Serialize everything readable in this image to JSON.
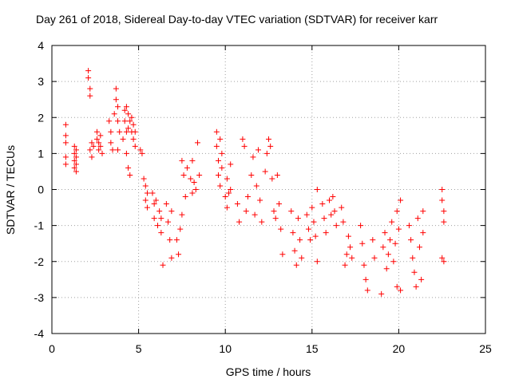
{
  "chart_data": {
    "type": "scatter",
    "title": "Day 261 of 2018, Sidereal Day-to-day VTEC variation (SDTVAR) for receiver karr",
    "xlabel": "GPS time / hours",
    "ylabel": "SDTVAR / TECUs",
    "xlim": [
      0,
      25
    ],
    "ylim": [
      -4,
      4
    ],
    "xticks": [
      0,
      5,
      10,
      15,
      20,
      25
    ],
    "yticks": [
      -4,
      -3,
      -2,
      -1,
      0,
      1,
      2,
      3,
      4
    ],
    "grid": true,
    "marker": "plus",
    "color": "#ff0000",
    "series": [
      {
        "name": "SDTVAR",
        "points": [
          [
            0.8,
            1.8
          ],
          [
            0.8,
            1.5
          ],
          [
            0.8,
            1.3
          ],
          [
            0.8,
            0.9
          ],
          [
            0.8,
            0.7
          ],
          [
            1.3,
            1.2
          ],
          [
            1.3,
            1.0
          ],
          [
            1.3,
            0.8
          ],
          [
            1.3,
            0.6
          ],
          [
            1.4,
            1.1
          ],
          [
            1.4,
            0.9
          ],
          [
            1.4,
            0.7
          ],
          [
            1.4,
            0.5
          ],
          [
            2.1,
            3.3
          ],
          [
            2.1,
            3.1
          ],
          [
            2.2,
            2.8
          ],
          [
            2.2,
            2.6
          ],
          [
            2.3,
            1.3
          ],
          [
            2.2,
            1.1
          ],
          [
            2.3,
            0.9
          ],
          [
            2.4,
            1.2
          ],
          [
            2.6,
            1.6
          ],
          [
            2.6,
            1.4
          ],
          [
            2.7,
            1.3
          ],
          [
            2.7,
            1.1
          ],
          [
            2.8,
            1.5
          ],
          [
            2.8,
            1.2
          ],
          [
            2.9,
            1.0
          ],
          [
            3.3,
            1.9
          ],
          [
            3.4,
            1.6
          ],
          [
            3.4,
            1.3
          ],
          [
            3.5,
            1.1
          ],
          [
            3.6,
            2.1
          ],
          [
            3.7,
            2.8
          ],
          [
            3.7,
            2.5
          ],
          [
            3.8,
            2.3
          ],
          [
            3.8,
            1.9
          ],
          [
            3.8,
            1.1
          ],
          [
            3.9,
            1.6
          ],
          [
            4.1,
            1.4
          ],
          [
            4.2,
            2.2
          ],
          [
            4.2,
            1.9
          ],
          [
            4.3,
            2.3
          ],
          [
            4.3,
            1.6
          ],
          [
            4.3,
            1.0
          ],
          [
            4.4,
            2.1
          ],
          [
            4.4,
            1.7
          ],
          [
            4.4,
            0.6
          ],
          [
            4.5,
            1.9
          ],
          [
            4.5,
            0.4
          ],
          [
            4.6,
            2.0
          ],
          [
            4.6,
            1.6
          ],
          [
            4.7,
            1.8
          ],
          [
            4.7,
            1.4
          ],
          [
            4.8,
            1.6
          ],
          [
            4.8,
            1.2
          ],
          [
            5.1,
            1.1
          ],
          [
            5.2,
            1.0
          ],
          [
            5.3,
            0.3
          ],
          [
            5.4,
            0.1
          ],
          [
            5.4,
            -0.3
          ],
          [
            5.5,
            -0.1
          ],
          [
            5.5,
            -0.5
          ],
          [
            5.8,
            -0.1
          ],
          [
            5.9,
            -0.4
          ],
          [
            5.9,
            -0.8
          ],
          [
            6.0,
            -0.3
          ],
          [
            6.1,
            -1.0
          ],
          [
            6.2,
            -0.6
          ],
          [
            6.3,
            -1.2
          ],
          [
            6.3,
            -0.8
          ],
          [
            6.4,
            -2.1
          ],
          [
            6.6,
            -0.4
          ],
          [
            6.7,
            -0.9
          ],
          [
            6.8,
            -1.4
          ],
          [
            6.9,
            -1.9
          ],
          [
            6.9,
            -0.6
          ],
          [
            7.2,
            -1.4
          ],
          [
            7.3,
            -1.8
          ],
          [
            7.4,
            -1.1
          ],
          [
            7.5,
            -0.7
          ],
          [
            7.5,
            0.8
          ],
          [
            7.6,
            0.4
          ],
          [
            7.7,
            -0.2
          ],
          [
            7.8,
            0.6
          ],
          [
            8.0,
            0.3
          ],
          [
            8.1,
            -0.1
          ],
          [
            8.1,
            0.8
          ],
          [
            8.2,
            0.2
          ],
          [
            8.3,
            0.0
          ],
          [
            8.4,
            1.3
          ],
          [
            8.5,
            0.4
          ],
          [
            9.5,
            1.6
          ],
          [
            9.5,
            1.2
          ],
          [
            9.6,
            0.8
          ],
          [
            9.6,
            0.4
          ],
          [
            9.7,
            1.4
          ],
          [
            9.7,
            0.1
          ],
          [
            9.8,
            1.0
          ],
          [
            9.8,
            0.6
          ],
          [
            10.0,
            -0.2
          ],
          [
            10.1,
            -0.5
          ],
          [
            10.1,
            0.3
          ],
          [
            10.2,
            -0.1
          ],
          [
            10.3,
            0.7
          ],
          [
            10.3,
            0.0
          ],
          [
            10.7,
            -0.4
          ],
          [
            10.8,
            -0.9
          ],
          [
            11.0,
            1.4
          ],
          [
            11.1,
            1.2
          ],
          [
            11.2,
            -0.6
          ],
          [
            11.3,
            -0.2
          ],
          [
            11.5,
            0.4
          ],
          [
            11.6,
            0.9
          ],
          [
            11.7,
            -0.7
          ],
          [
            11.8,
            0.1
          ],
          [
            11.9,
            1.1
          ],
          [
            12.0,
            -0.3
          ],
          [
            12.1,
            -0.9
          ],
          [
            12.3,
            0.5
          ],
          [
            12.4,
            1.0
          ],
          [
            12.5,
            1.4
          ],
          [
            12.6,
            1.2
          ],
          [
            12.7,
            0.3
          ],
          [
            12.8,
            -0.6
          ],
          [
            12.9,
            -0.8
          ],
          [
            13.0,
            0.4
          ],
          [
            13.1,
            -0.4
          ],
          [
            13.2,
            -1.1
          ],
          [
            13.3,
            -1.8
          ],
          [
            13.8,
            -0.6
          ],
          [
            13.9,
            -1.2
          ],
          [
            14.0,
            -1.7
          ],
          [
            14.1,
            -2.1
          ],
          [
            14.2,
            -0.8
          ],
          [
            14.3,
            -1.4
          ],
          [
            14.4,
            -1.9
          ],
          [
            14.7,
            -0.7
          ],
          [
            14.8,
            -1.1
          ],
          [
            14.9,
            -1.4
          ],
          [
            15.0,
            -0.5
          ],
          [
            15.1,
            -0.9
          ],
          [
            15.2,
            -1.3
          ],
          [
            15.3,
            0.0
          ],
          [
            15.3,
            -2.0
          ],
          [
            15.6,
            -0.4
          ],
          [
            15.7,
            -0.8
          ],
          [
            15.8,
            -1.2
          ],
          [
            16.0,
            -0.3
          ],
          [
            16.1,
            -0.7
          ],
          [
            16.2,
            -0.2
          ],
          [
            16.3,
            -0.6
          ],
          [
            16.4,
            -1.0
          ],
          [
            16.7,
            -0.5
          ],
          [
            16.8,
            -0.9
          ],
          [
            16.9,
            -2.1
          ],
          [
            17.0,
            -1.8
          ],
          [
            17.1,
            -1.3
          ],
          [
            17.2,
            -1.6
          ],
          [
            17.3,
            -1.9
          ],
          [
            17.8,
            -1.0
          ],
          [
            17.9,
            -1.5
          ],
          [
            18.0,
            -2.1
          ],
          [
            18.1,
            -2.5
          ],
          [
            18.2,
            -2.8
          ],
          [
            18.5,
            -1.4
          ],
          [
            18.6,
            -1.9
          ],
          [
            19.0,
            -2.9
          ],
          [
            19.1,
            -1.6
          ],
          [
            19.2,
            -1.2
          ],
          [
            19.3,
            -2.2
          ],
          [
            19.4,
            -1.8
          ],
          [
            19.5,
            -1.4
          ],
          [
            19.6,
            -0.9
          ],
          [
            19.7,
            -2.0
          ],
          [
            19.8,
            -1.5
          ],
          [
            19.9,
            -0.6
          ],
          [
            19.9,
            -2.7
          ],
          [
            20.0,
            -1.1
          ],
          [
            20.1,
            -0.3
          ],
          [
            20.1,
            -2.8
          ],
          [
            20.6,
            -1.0
          ],
          [
            20.7,
            -1.4
          ],
          [
            20.8,
            -1.9
          ],
          [
            20.9,
            -2.3
          ],
          [
            21.0,
            -2.7
          ],
          [
            21.1,
            -0.8
          ],
          [
            21.2,
            -1.6
          ],
          [
            21.3,
            -2.5
          ],
          [
            21.4,
            -0.6
          ],
          [
            21.4,
            -1.2
          ],
          [
            22.5,
            0.0
          ],
          [
            22.5,
            -0.3
          ],
          [
            22.6,
            -0.6
          ],
          [
            22.6,
            -0.9
          ],
          [
            22.5,
            -1.9
          ],
          [
            22.6,
            -2.0
          ]
        ]
      }
    ]
  }
}
